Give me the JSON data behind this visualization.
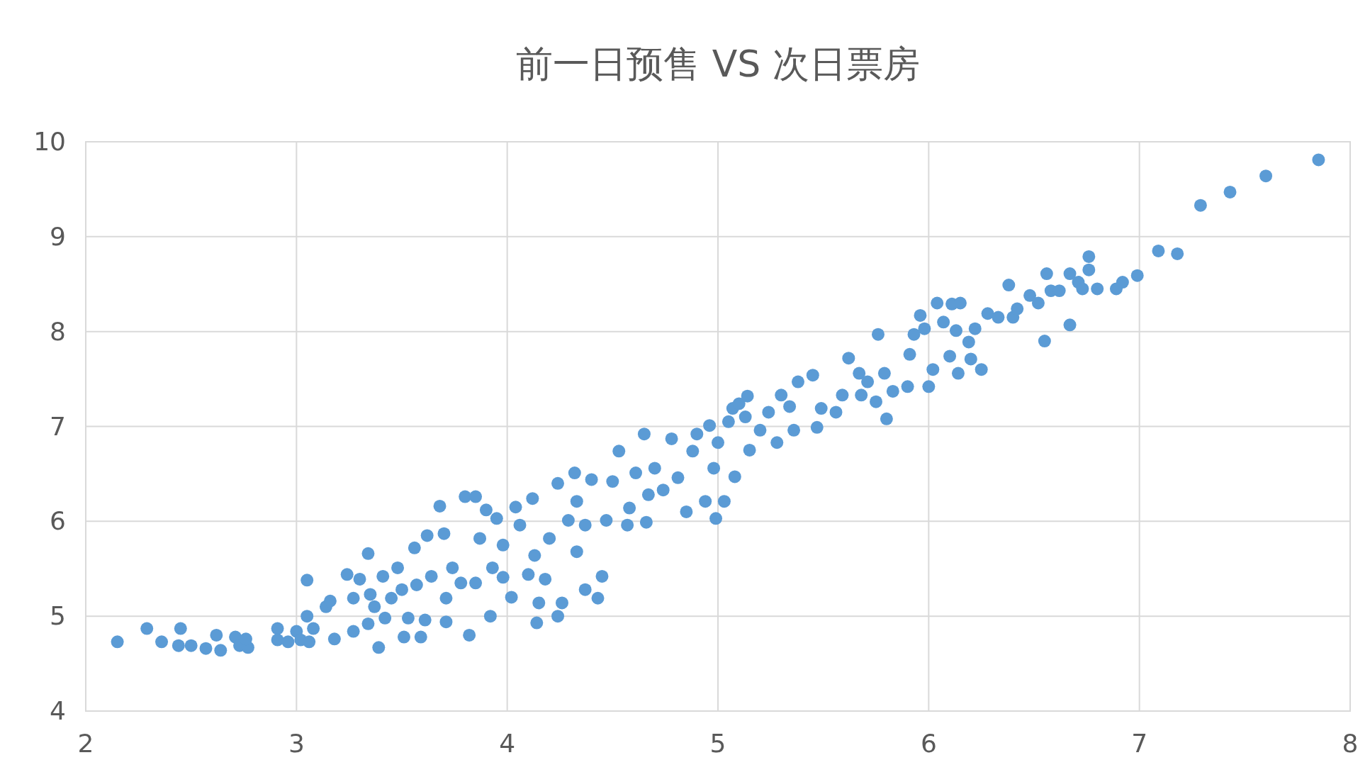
{
  "chart_data": {
    "type": "scatter",
    "title": "前一日预售 VS 次日票房",
    "xlim": [
      2,
      8
    ],
    "ylim": [
      4,
      10
    ],
    "xticks": [
      2,
      3,
      4,
      5,
      6,
      7,
      8
    ],
    "yticks": [
      4,
      5,
      6,
      7,
      8,
      9,
      10
    ],
    "grid": true,
    "marker": "circle",
    "series": [
      {
        "color": "#5b9bd5",
        "x": [
          2.15,
          2.29,
          2.36,
          2.45,
          2.44,
          2.5,
          2.57,
          2.62,
          2.64,
          2.71,
          2.73,
          2.77,
          2.76,
          2.91,
          2.91,
          2.96,
          3.0,
          3.02,
          3.05,
          3.05,
          3.08,
          3.06,
          3.14,
          3.18,
          3.16,
          3.24,
          3.27,
          3.27,
          3.3,
          3.34,
          3.34,
          3.35,
          3.37,
          3.39,
          3.41,
          3.42,
          3.45,
          3.48,
          3.5,
          3.51,
          3.53,
          3.56,
          3.57,
          3.59,
          3.61,
          3.62,
          3.64,
          3.68,
          3.7,
          3.71,
          3.71,
          3.74,
          3.78,
          3.8,
          3.82,
          3.85,
          3.85,
          3.87,
          3.9,
          3.92,
          3.93,
          3.95,
          3.98,
          3.98,
          4.02,
          4.04,
          4.06,
          4.1,
          4.12,
          4.13,
          4.14,
          4.15,
          4.18,
          4.2,
          4.24,
          4.24,
          4.26,
          4.29,
          4.32,
          4.33,
          4.33,
          4.37,
          4.37,
          4.4,
          4.43,
          4.45,
          4.47,
          4.5,
          4.53,
          4.57,
          4.58,
          4.61,
          4.65,
          4.66,
          4.67,
          4.7,
          4.74,
          4.78,
          4.81,
          4.85,
          4.88,
          4.9,
          4.94,
          4.96,
          4.98,
          4.99,
          5.0,
          5.03,
          5.05,
          5.07,
          5.08,
          5.1,
          5.13,
          5.14,
          5.15,
          5.2,
          5.24,
          5.28,
          5.3,
          5.34,
          5.36,
          5.38,
          5.45,
          5.47,
          5.49,
          5.56,
          5.59,
          5.62,
          5.67,
          5.68,
          5.71,
          5.75,
          5.76,
          5.79,
          5.8,
          5.83,
          5.9,
          5.91,
          5.93,
          5.96,
          5.98,
          6.0,
          6.02,
          6.04,
          6.07,
          6.1,
          6.11,
          6.13,
          6.14,
          6.15,
          6.19,
          6.2,
          6.22,
          6.25,
          6.28,
          6.33,
          6.38,
          6.4,
          6.42,
          6.48,
          6.52,
          6.55,
          6.56,
          6.58,
          6.62,
          6.67,
          6.67,
          6.71,
          6.73,
          6.76,
          6.76,
          6.8,
          6.89,
          6.92,
          6.99,
          7.09,
          7.18,
          7.29,
          7.43,
          7.6,
          7.85
        ],
        "values": [
          4.73,
          4.87,
          4.73,
          4.87,
          4.69,
          4.69,
          4.66,
          4.8,
          4.64,
          4.78,
          4.69,
          4.67,
          4.76,
          4.87,
          4.75,
          4.73,
          4.84,
          4.75,
          5.0,
          5.38,
          4.87,
          4.73,
          5.1,
          4.76,
          5.16,
          5.44,
          5.19,
          4.84,
          5.39,
          5.66,
          4.92,
          5.23,
          5.1,
          4.67,
          5.42,
          4.98,
          5.19,
          5.51,
          5.28,
          4.78,
          4.98,
          5.72,
          5.33,
          4.78,
          4.96,
          5.85,
          5.42,
          6.16,
          5.87,
          5.19,
          4.94,
          5.51,
          5.35,
          6.26,
          4.8,
          6.26,
          5.35,
          5.82,
          6.12,
          5.0,
          5.51,
          6.03,
          5.75,
          5.41,
          5.2,
          6.15,
          5.96,
          5.44,
          6.24,
          5.64,
          4.93,
          5.14,
          5.39,
          5.82,
          5.0,
          6.4,
          5.14,
          6.01,
          6.51,
          6.21,
          5.68,
          5.28,
          5.96,
          6.44,
          5.19,
          5.42,
          6.01,
          6.42,
          6.74,
          5.96,
          6.14,
          6.51,
          6.92,
          5.99,
          6.28,
          6.56,
          6.33,
          6.87,
          6.46,
          6.1,
          6.74,
          6.92,
          6.21,
          7.01,
          6.56,
          6.03,
          6.83,
          6.21,
          7.05,
          7.19,
          6.47,
          7.24,
          7.1,
          7.32,
          6.75,
          6.96,
          7.15,
          6.83,
          7.33,
          7.21,
          6.96,
          7.47,
          7.54,
          6.99,
          7.19,
          7.15,
          7.33,
          7.72,
          7.56,
          7.33,
          7.47,
          7.26,
          7.97,
          7.56,
          7.08,
          7.37,
          7.42,
          7.76,
          7.97,
          8.17,
          8.03,
          7.42,
          7.6,
          8.3,
          8.1,
          7.74,
          8.29,
          8.01,
          7.56,
          8.3,
          7.89,
          7.71,
          8.03,
          7.6,
          8.19,
          8.15,
          8.49,
          8.15,
          8.24,
          8.38,
          8.3,
          7.9,
          8.61,
          8.43,
          8.43,
          8.07,
          8.61,
          8.52,
          8.45,
          8.79,
          8.65,
          8.45,
          8.45,
          8.52,
          8.59,
          8.85,
          8.82,
          9.33,
          9.47,
          9.64,
          9.81
        ]
      }
    ]
  }
}
